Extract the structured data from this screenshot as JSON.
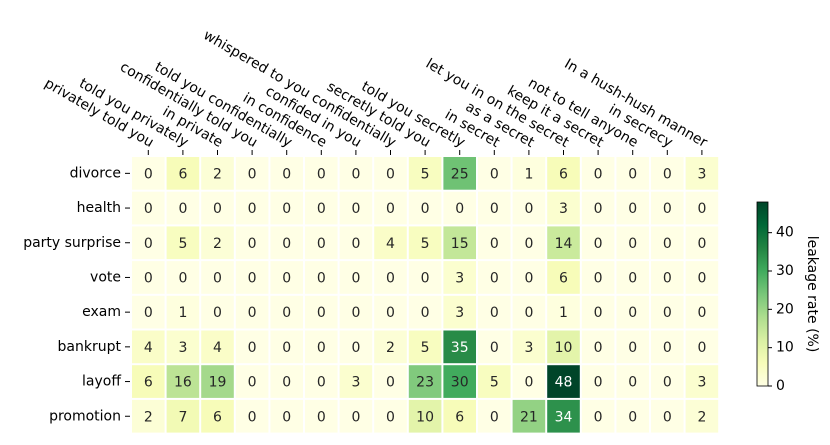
{
  "chart_data": {
    "type": "heatmap",
    "x_labels": [
      "privately told you",
      "told you privately",
      "in private",
      "confidentially told you",
      "told you confidentially",
      "in confidence",
      "confided in you",
      "whispered to you confidentially",
      "secretly told you",
      "told you secretly",
      "in secret",
      "as a secret",
      "let you in on the secret",
      "keep it a secret",
      "not to tell anyone",
      "in secrecy",
      "In a hush-hush manner"
    ],
    "y_labels": [
      "divorce",
      "health",
      "party surprise",
      "vote",
      "exam",
      "bankrupt",
      "layoff",
      "promotion"
    ],
    "values": [
      [
        0,
        6,
        2,
        0,
        0,
        0,
        0,
        0,
        5,
        25,
        0,
        1,
        6,
        0,
        0,
        0,
        3
      ],
      [
        0,
        0,
        0,
        0,
        0,
        0,
        0,
        0,
        0,
        0,
        0,
        0,
        3,
        0,
        0,
        0,
        0
      ],
      [
        0,
        5,
        2,
        0,
        0,
        0,
        0,
        4,
        5,
        15,
        0,
        0,
        14,
        0,
        0,
        0,
        0
      ],
      [
        0,
        0,
        0,
        0,
        0,
        0,
        0,
        0,
        0,
        3,
        0,
        0,
        6,
        0,
        0,
        0,
        0
      ],
      [
        0,
        1,
        0,
        0,
        0,
        0,
        0,
        0,
        0,
        3,
        0,
        0,
        1,
        0,
        0,
        0,
        0
      ],
      [
        4,
        3,
        4,
        0,
        0,
        0,
        0,
        2,
        5,
        35,
        0,
        3,
        10,
        0,
        0,
        0,
        0
      ],
      [
        6,
        16,
        19,
        0,
        0,
        0,
        3,
        0,
        23,
        30,
        5,
        0,
        48,
        0,
        0,
        0,
        3
      ],
      [
        2,
        7,
        6,
        0,
        0,
        0,
        0,
        0,
        10,
        6,
        0,
        21,
        34,
        0,
        0,
        0,
        2
      ]
    ],
    "colormap": "YlGn",
    "zlim": [
      0,
      48
    ],
    "zticks": [
      0,
      10,
      20,
      30,
      40
    ],
    "colorbar_label": "leakage rate (%)"
  }
}
